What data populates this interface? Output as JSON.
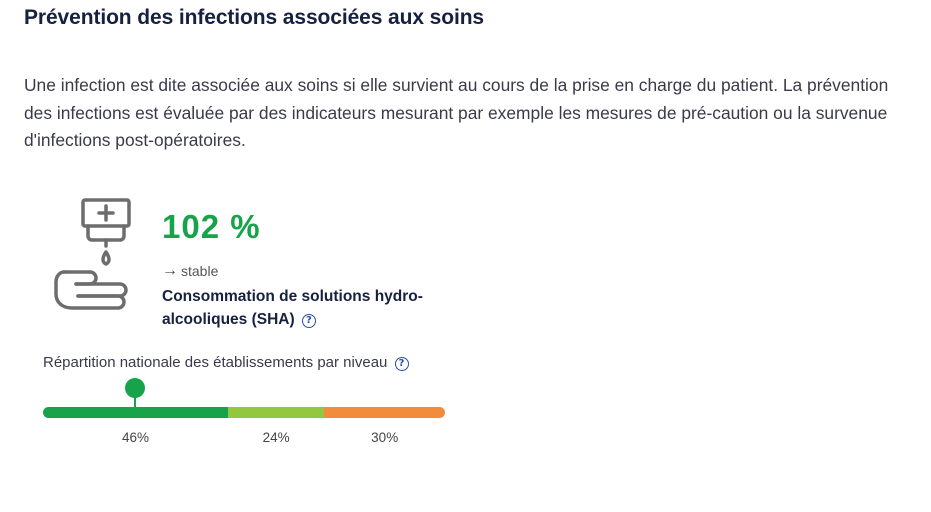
{
  "section": {
    "title": "Prévention des infections associées aux soins",
    "intro": "Une infection est dite associée aux soins si elle survient au cours de la prise en charge du patient. La prévention des infections est évaluée par des indicateurs mesurant par exemple les mesures de pré-caution ou la survenue d'infections post-opératoires."
  },
  "indicator": {
    "icon": "hand-sanitizer-icon",
    "value": "102 %",
    "trend_arrow": "→",
    "trend": "stable",
    "label": "Consommation de solutions hydro-alcooliques (SHA)",
    "help_icon": "?"
  },
  "distribution": {
    "label": "Répartition nationale des établissements par niveau",
    "help_icon": "?",
    "marker_level": 0.23,
    "segments": [
      {
        "share": 46,
        "label": "46%",
        "color": "#17a34a"
      },
      {
        "share": 24,
        "label": "24%",
        "color": "#93c83e"
      },
      {
        "share": 30,
        "label": "30%",
        "color": "#f08c3b"
      }
    ]
  }
}
